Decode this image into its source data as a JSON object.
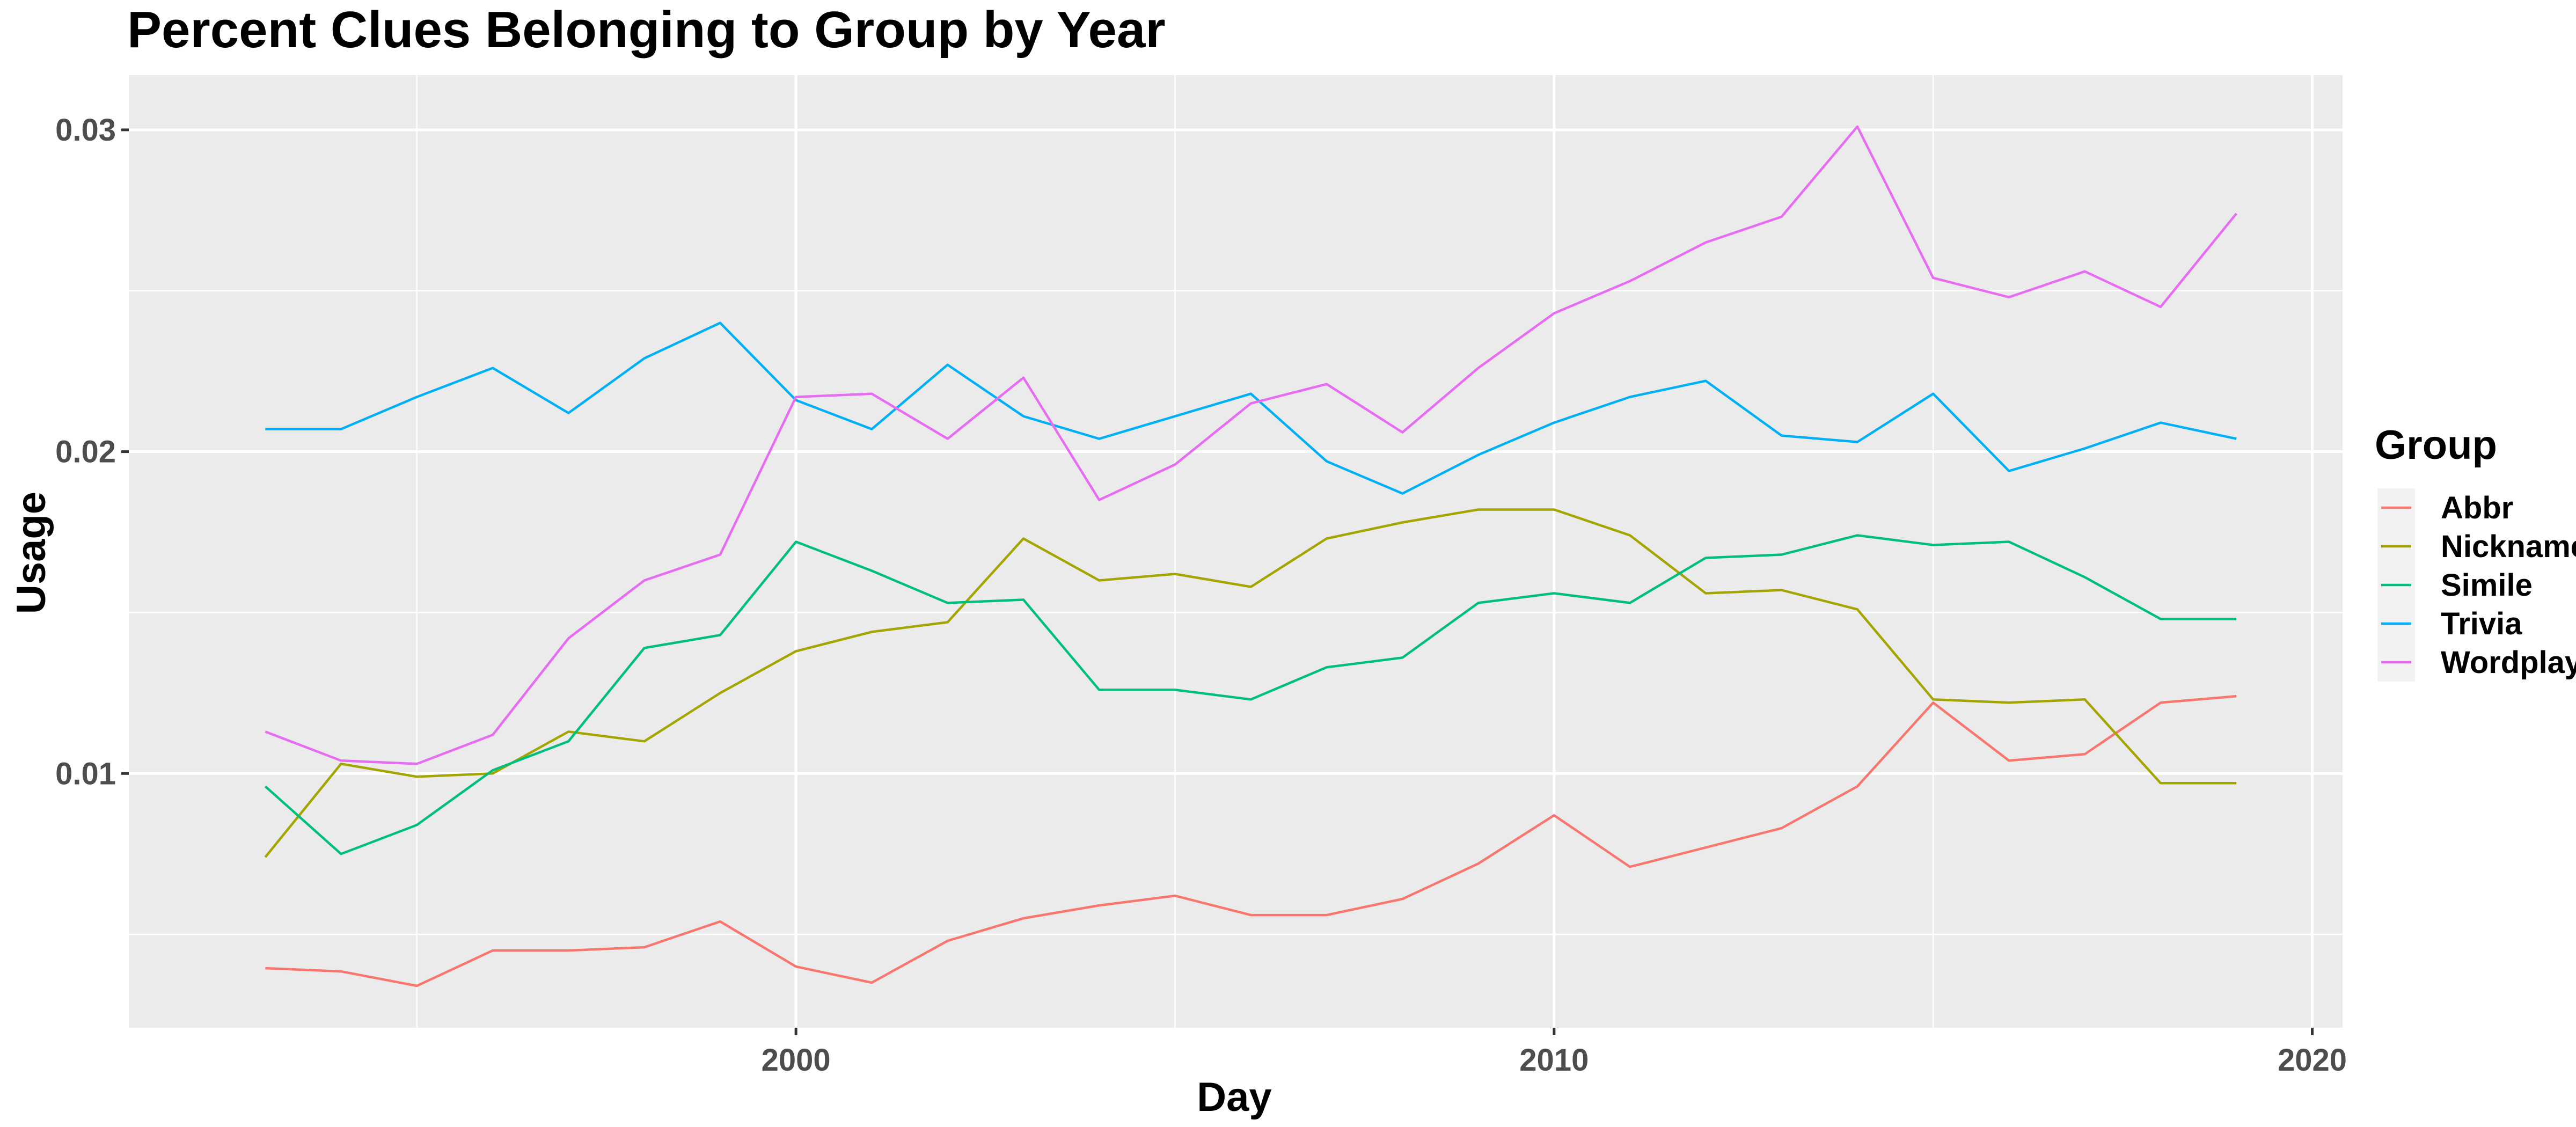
{
  "chart_data": {
    "type": "line",
    "title": "Percent Clues Belonging to Group by Year",
    "xlabel": "Day",
    "ylabel": "Usage",
    "xlim": [
      1991.2,
      2020.4
    ],
    "ylim": [
      0.0021,
      0.0317
    ],
    "x_ticks": [
      2000,
      2010,
      2020
    ],
    "x_tick_labels": [
      "2000",
      "2010",
      "2020"
    ],
    "y_ticks": [
      0.01,
      0.02,
      0.03
    ],
    "y_tick_labels": [
      "0.01",
      "0.02",
      "0.03"
    ],
    "grid": true,
    "legend_title": "Group",
    "legend_position": "right",
    "x": [
      1993,
      1994,
      1995,
      1996,
      1997,
      1998,
      1999,
      2000,
      2001,
      2002,
      2003,
      2004,
      2005,
      2006,
      2007,
      2008,
      2009,
      2010,
      2011,
      2012,
      2013,
      2014,
      2015,
      2016,
      2017,
      2018,
      2019
    ],
    "series": [
      {
        "name": "Abbr",
        "color": "#F8766D",
        "values": [
          0.00395,
          0.00385,
          0.0034,
          0.0045,
          0.0045,
          0.0046,
          0.0054,
          0.004,
          0.0035,
          0.0048,
          0.0055,
          0.0059,
          0.0062,
          0.0056,
          0.0056,
          0.0061,
          0.0072,
          0.0087,
          0.0071,
          0.0077,
          0.0083,
          0.0096,
          0.0122,
          0.0104,
          0.0106,
          0.0122,
          0.0124
        ]
      },
      {
        "name": "Nickname",
        "color": "#A3A500",
        "values": [
          0.0074,
          0.0103,
          0.0099,
          0.01,
          0.0113,
          0.011,
          0.0125,
          0.0138,
          0.0144,
          0.0147,
          0.0173,
          0.016,
          0.0162,
          0.0158,
          0.0173,
          0.0178,
          0.0182,
          0.0182,
          0.0174,
          0.0156,
          0.0157,
          0.0151,
          0.0123,
          0.0122,
          0.0123,
          0.0097,
          0.0097
        ]
      },
      {
        "name": "Simile",
        "color": "#00BF7D",
        "values": [
          0.0096,
          0.0075,
          0.0084,
          0.0101,
          0.011,
          0.0139,
          0.0143,
          0.0172,
          0.0163,
          0.0153,
          0.0154,
          0.0126,
          0.0126,
          0.0123,
          0.0133,
          0.0136,
          0.0153,
          0.0156,
          0.0153,
          0.0167,
          0.0168,
          0.0174,
          0.0171,
          0.0172,
          0.0161,
          0.0148,
          0.0148
        ]
      },
      {
        "name": "Trivia",
        "color": "#00B0F6",
        "values": [
          0.0207,
          0.0207,
          0.0217,
          0.0226,
          0.0212,
          0.0229,
          0.024,
          0.0216,
          0.0207,
          0.0227,
          0.0211,
          0.0204,
          0.0211,
          0.0218,
          0.0197,
          0.0187,
          0.0199,
          0.0209,
          0.0217,
          0.0222,
          0.0205,
          0.0203,
          0.0218,
          0.0194,
          0.0201,
          0.0209,
          0.0204
        ]
      },
      {
        "name": "Wordplay",
        "color": "#E76BF3",
        "values": [
          0.0113,
          0.0104,
          0.0103,
          0.0112,
          0.0142,
          0.016,
          0.0168,
          0.0217,
          0.0218,
          0.0204,
          0.0223,
          0.0185,
          0.0196,
          0.0215,
          0.0221,
          0.0206,
          0.0226,
          0.0243,
          0.0253,
          0.0265,
          0.0273,
          0.0301,
          0.0254,
          0.0248,
          0.0256,
          0.0245,
          0.0274
        ]
      }
    ]
  }
}
